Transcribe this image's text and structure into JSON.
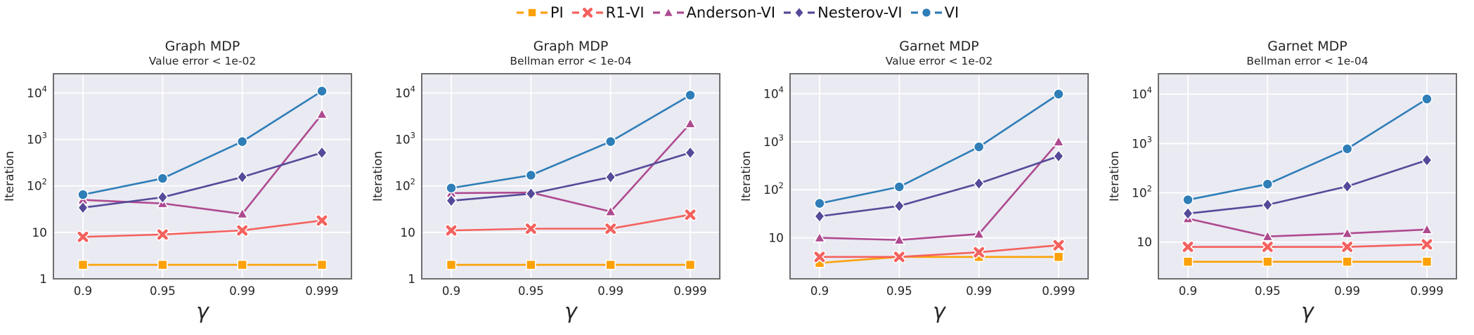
{
  "figure": {
    "xlabel": "γ",
    "ylabel": "Iteration",
    "x_tick_labels": [
      "0.9",
      "0.95",
      "0.99",
      "0.999"
    ],
    "plot_bg_color": "#EAEAF2",
    "grid_color": "#FFFFFF",
    "frame_color": "#6E6E6E",
    "text_color": "#262626"
  },
  "legend": {
    "position": "top-center",
    "items": [
      {
        "label": "PI",
        "color": "#FCA108",
        "marker": "square"
      },
      {
        "label": "R1-VI",
        "color": "#F4615E",
        "marker": "x"
      },
      {
        "label": "Anderson-VI",
        "color": "#AE4A90",
        "marker": "triangle"
      },
      {
        "label": "Nesterov-VI",
        "color": "#544A99",
        "marker": "diamond"
      },
      {
        "label": "VI",
        "color": "#2E7EB8",
        "marker": "circle"
      }
    ]
  },
  "chart_data": [
    {
      "type": "line",
      "title": "Graph MDP",
      "subtitle": "Value error < 1e-02",
      "xlabel": "γ",
      "ylabel": "Iteration",
      "yscale": "log",
      "grid": true,
      "x_labels": [
        "0.9",
        "0.95",
        "0.99",
        "0.999"
      ],
      "ylim": [
        1,
        26000
      ],
      "yticks": [
        {
          "v": 1,
          "base": "1"
        },
        {
          "v": 10,
          "base": "10"
        },
        {
          "v": 100,
          "base": "10",
          "sup": "2"
        },
        {
          "v": 1000,
          "base": "10",
          "sup": "3"
        },
        {
          "v": 10000,
          "base": "10",
          "sup": "4"
        }
      ],
      "series": [
        {
          "name": "PI",
          "color": "#FCA108",
          "marker": "square",
          "values": [
            2,
            2,
            2,
            2
          ]
        },
        {
          "name": "R1-VI",
          "color": "#F4615E",
          "marker": "x",
          "values": [
            8,
            9,
            11,
            18
          ]
        },
        {
          "name": "Anderson-VI",
          "color": "#AE4A90",
          "marker": "triangle",
          "values": [
            50,
            42,
            25,
            3500
          ]
        },
        {
          "name": "Nesterov-VI",
          "color": "#544A99",
          "marker": "diamond",
          "values": [
            34,
            57,
            155,
            520
          ]
        },
        {
          "name": "VI",
          "color": "#2E7EB8",
          "marker": "circle",
          "values": [
            65,
            145,
            900,
            11000
          ]
        }
      ]
    },
    {
      "type": "line",
      "title": "Graph MDP",
      "subtitle": "Bellman error < 1e-04",
      "xlabel": "γ",
      "ylabel": "Iteration",
      "yscale": "log",
      "grid": true,
      "x_labels": [
        "0.9",
        "0.95",
        "0.99",
        "0.999"
      ],
      "ylim": [
        1,
        26000
      ],
      "yticks": [
        {
          "v": 1,
          "base": "1"
        },
        {
          "v": 10,
          "base": "10"
        },
        {
          "v": 100,
          "base": "10",
          "sup": "2"
        },
        {
          "v": 1000,
          "base": "10",
          "sup": "3"
        },
        {
          "v": 10000,
          "base": "10",
          "sup": "4"
        }
      ],
      "series": [
        {
          "name": "PI",
          "color": "#FCA108",
          "marker": "square",
          "values": [
            2,
            2,
            2,
            2
          ]
        },
        {
          "name": "R1-VI",
          "color": "#F4615E",
          "marker": "x",
          "values": [
            11,
            12,
            12,
            24
          ]
        },
        {
          "name": "Anderson-VI",
          "color": "#AE4A90",
          "marker": "triangle",
          "values": [
            70,
            72,
            28,
            2200
          ]
        },
        {
          "name": "Nesterov-VI",
          "color": "#544A99",
          "marker": "diamond",
          "values": [
            48,
            68,
            155,
            520
          ]
        },
        {
          "name": "VI",
          "color": "#2E7EB8",
          "marker": "circle",
          "values": [
            90,
            170,
            900,
            9000
          ]
        }
      ]
    },
    {
      "type": "line",
      "title": "Garnet MDP",
      "subtitle": "Value error < 1e-02",
      "xlabel": "γ",
      "ylabel": "Iteration",
      "yscale": "log",
      "grid": true,
      "x_labels": [
        "0.9",
        "0.95",
        "0.99",
        "0.999"
      ],
      "ylim": [
        1.4,
        26000
      ],
      "yticks": [
        {
          "v": 10,
          "base": "10"
        },
        {
          "v": 100,
          "base": "10",
          "sup": "2"
        },
        {
          "v": 1000,
          "base": "10",
          "sup": "3"
        },
        {
          "v": 10000,
          "base": "10",
          "sup": "4"
        }
      ],
      "series": [
        {
          "name": "PI",
          "color": "#FCA108",
          "marker": "square",
          "values": [
            3,
            4,
            4,
            4
          ]
        },
        {
          "name": "R1-VI",
          "color": "#F4615E",
          "marker": "x",
          "values": [
            4,
            4,
            5,
            7
          ]
        },
        {
          "name": "Anderson-VI",
          "color": "#AE4A90",
          "marker": "triangle",
          "values": [
            10,
            9,
            12,
            1000
          ]
        },
        {
          "name": "Nesterov-VI",
          "color": "#544A99",
          "marker": "diamond",
          "values": [
            28,
            46,
            135,
            500
          ]
        },
        {
          "name": "VI",
          "color": "#2E7EB8",
          "marker": "circle",
          "values": [
            52,
            115,
            780,
            9800
          ]
        }
      ]
    },
    {
      "type": "line",
      "title": "Garnet MDP",
      "subtitle": "Bellman error < 1e-04",
      "xlabel": "γ",
      "ylabel": "Iteration",
      "yscale": "log",
      "grid": true,
      "x_labels": [
        "0.9",
        "0.95",
        "0.99",
        "0.999"
      ],
      "ylim": [
        1.8,
        26000
      ],
      "yticks": [
        {
          "v": 10,
          "base": "10"
        },
        {
          "v": 100,
          "base": "10",
          "sup": "2"
        },
        {
          "v": 1000,
          "base": "10",
          "sup": "3"
        },
        {
          "v": 10000,
          "base": "10",
          "sup": "4"
        }
      ],
      "series": [
        {
          "name": "PI",
          "color": "#FCA108",
          "marker": "square",
          "values": [
            4,
            4,
            4,
            4
          ]
        },
        {
          "name": "R1-VI",
          "color": "#F4615E",
          "marker": "x",
          "values": [
            8,
            8,
            8,
            9
          ]
        },
        {
          "name": "Anderson-VI",
          "color": "#AE4A90",
          "marker": "triangle",
          "values": [
            30,
            13,
            15,
            18
          ]
        },
        {
          "name": "Nesterov-VI",
          "color": "#544A99",
          "marker": "diamond",
          "values": [
            38,
            57,
            135,
            460
          ]
        },
        {
          "name": "VI",
          "color": "#2E7EB8",
          "marker": "circle",
          "values": [
            72,
            150,
            780,
            8000
          ]
        }
      ]
    }
  ]
}
